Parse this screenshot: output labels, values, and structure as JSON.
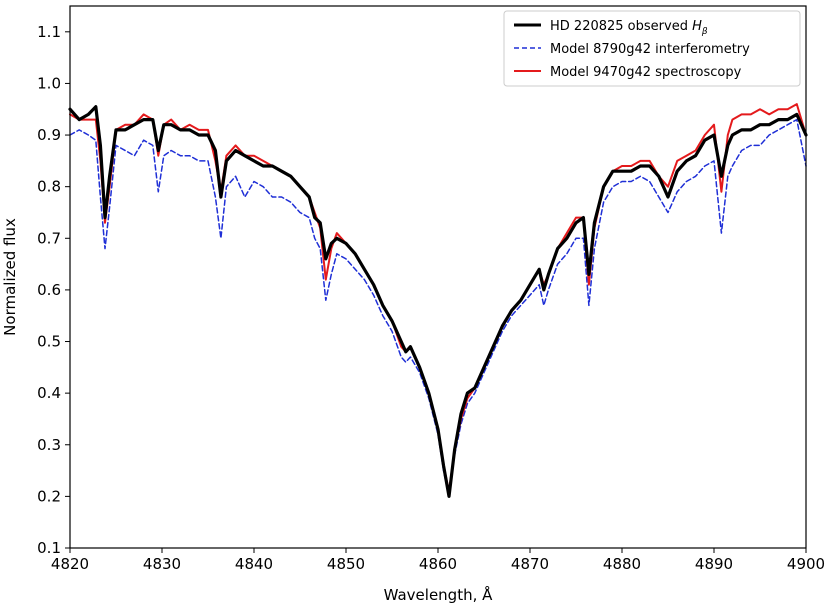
{
  "chart_data": {
    "type": "line",
    "title": "",
    "xlabel": "Wavelength, Å",
    "ylabel": "Normalized flux",
    "xlim": [
      4820,
      4900
    ],
    "ylim": [
      0.1,
      1.15
    ],
    "x_ticks": [
      4820,
      4830,
      4840,
      4850,
      4860,
      4870,
      4880,
      4890,
      4900
    ],
    "x_tick_labels": [
      "4820",
      "4830",
      "4840",
      "4850",
      "4860",
      "4870",
      "4880",
      "4890",
      "4900"
    ],
    "y_ticks": [
      0.1,
      0.2,
      0.3,
      0.4,
      0.5,
      0.6,
      0.7,
      0.8,
      0.9,
      1.0,
      1.1
    ],
    "y_tick_labels": [
      "0.1",
      "0.2",
      "0.3",
      "0.4",
      "0.5",
      "0.6",
      "0.7",
      "0.8",
      "0.9",
      "1.0",
      "1.1"
    ],
    "grid": false,
    "legend_position": "top-right",
    "series": [
      {
        "name": "HD 220825 observed",
        "name_sub": "β",
        "color": "#000000",
        "style": "solid",
        "points": [
          [
            4820.0,
            0.95
          ],
          [
            4821.0,
            0.93
          ],
          [
            4822.0,
            0.94
          ],
          [
            4822.8,
            0.955
          ],
          [
            4823.3,
            0.88
          ],
          [
            4823.8,
            0.74
          ],
          [
            4824.3,
            0.82
          ],
          [
            4825.0,
            0.91
          ],
          [
            4826.0,
            0.91
          ],
          [
            4827.0,
            0.92
          ],
          [
            4828.0,
            0.93
          ],
          [
            4829.0,
            0.93
          ],
          [
            4829.6,
            0.87
          ],
          [
            4830.2,
            0.92
          ],
          [
            4831.0,
            0.92
          ],
          [
            4832.0,
            0.91
          ],
          [
            4833.0,
            0.91
          ],
          [
            4834.0,
            0.9
          ],
          [
            4835.0,
            0.9
          ],
          [
            4835.8,
            0.87
          ],
          [
            4836.4,
            0.78
          ],
          [
            4837.0,
            0.85
          ],
          [
            4838.0,
            0.87
          ],
          [
            4839.0,
            0.86
          ],
          [
            4840.0,
            0.85
          ],
          [
            4841.0,
            0.84
          ],
          [
            4842.0,
            0.84
          ],
          [
            4843.0,
            0.83
          ],
          [
            4844.0,
            0.82
          ],
          [
            4845.0,
            0.8
          ],
          [
            4846.0,
            0.78
          ],
          [
            4846.6,
            0.74
          ],
          [
            4847.2,
            0.73
          ],
          [
            4847.8,
            0.66
          ],
          [
            4848.4,
            0.69
          ],
          [
            4849.0,
            0.7
          ],
          [
            4850.0,
            0.69
          ],
          [
            4851.0,
            0.67
          ],
          [
            4852.0,
            0.64
          ],
          [
            4853.0,
            0.61
          ],
          [
            4854.0,
            0.57
          ],
          [
            4855.0,
            0.54
          ],
          [
            4856.0,
            0.5
          ],
          [
            4856.5,
            0.48
          ],
          [
            4857.0,
            0.49
          ],
          [
            4858.0,
            0.45
          ],
          [
            4859.0,
            0.4
          ],
          [
            4860.0,
            0.33
          ],
          [
            4860.6,
            0.26
          ],
          [
            4861.2,
            0.2
          ],
          [
            4861.8,
            0.29
          ],
          [
            4862.5,
            0.36
          ],
          [
            4863.2,
            0.4
          ],
          [
            4864.0,
            0.41
          ],
          [
            4865.0,
            0.45
          ],
          [
            4866.0,
            0.49
          ],
          [
            4867.0,
            0.53
          ],
          [
            4868.0,
            0.56
          ],
          [
            4869.0,
            0.58
          ],
          [
            4870.0,
            0.61
          ],
          [
            4871.0,
            0.64
          ],
          [
            4871.5,
            0.6
          ],
          [
            4872.0,
            0.63
          ],
          [
            4873.0,
            0.68
          ],
          [
            4874.0,
            0.7
          ],
          [
            4875.0,
            0.73
          ],
          [
            4875.8,
            0.74
          ],
          [
            4876.4,
            0.63
          ],
          [
            4877.0,
            0.73
          ],
          [
            4878.0,
            0.8
          ],
          [
            4879.0,
            0.83
          ],
          [
            4880.0,
            0.83
          ],
          [
            4881.0,
            0.83
          ],
          [
            4882.0,
            0.84
          ],
          [
            4883.0,
            0.84
          ],
          [
            4884.0,
            0.82
          ],
          [
            4885.0,
            0.78
          ],
          [
            4886.0,
            0.83
          ],
          [
            4887.0,
            0.85
          ],
          [
            4888.0,
            0.86
          ],
          [
            4889.0,
            0.89
          ],
          [
            4890.0,
            0.9
          ],
          [
            4890.8,
            0.82
          ],
          [
            4891.5,
            0.88
          ],
          [
            4892.0,
            0.9
          ],
          [
            4893.0,
            0.91
          ],
          [
            4894.0,
            0.91
          ],
          [
            4895.0,
            0.92
          ],
          [
            4896.0,
            0.92
          ],
          [
            4897.0,
            0.93
          ],
          [
            4898.0,
            0.93
          ],
          [
            4899.0,
            0.94
          ],
          [
            4900.0,
            0.9
          ]
        ]
      },
      {
        "name": "Model 8790g42 interferometry",
        "color": "#1f2fd6",
        "style": "dashed",
        "points": [
          [
            4820.0,
            0.9
          ],
          [
            4821.0,
            0.91
          ],
          [
            4822.0,
            0.9
          ],
          [
            4822.8,
            0.89
          ],
          [
            4823.3,
            0.78
          ],
          [
            4823.8,
            0.68
          ],
          [
            4824.3,
            0.76
          ],
          [
            4825.0,
            0.88
          ],
          [
            4826.0,
            0.87
          ],
          [
            4827.0,
            0.86
          ],
          [
            4828.0,
            0.89
          ],
          [
            4829.0,
            0.88
          ],
          [
            4829.6,
            0.79
          ],
          [
            4830.2,
            0.86
          ],
          [
            4831.0,
            0.87
          ],
          [
            4832.0,
            0.86
          ],
          [
            4833.0,
            0.86
          ],
          [
            4834.0,
            0.85
          ],
          [
            4835.0,
            0.85
          ],
          [
            4835.8,
            0.78
          ],
          [
            4836.4,
            0.7
          ],
          [
            4837.0,
            0.8
          ],
          [
            4838.0,
            0.82
          ],
          [
            4839.0,
            0.78
          ],
          [
            4840.0,
            0.81
          ],
          [
            4841.0,
            0.8
          ],
          [
            4842.0,
            0.78
          ],
          [
            4843.0,
            0.78
          ],
          [
            4844.0,
            0.77
          ],
          [
            4845.0,
            0.75
          ],
          [
            4846.0,
            0.74
          ],
          [
            4846.6,
            0.7
          ],
          [
            4847.2,
            0.68
          ],
          [
            4847.8,
            0.58
          ],
          [
            4848.4,
            0.63
          ],
          [
            4849.0,
            0.67
          ],
          [
            4850.0,
            0.66
          ],
          [
            4851.0,
            0.64
          ],
          [
            4852.0,
            0.62
          ],
          [
            4853.0,
            0.59
          ],
          [
            4854.0,
            0.55
          ],
          [
            4855.0,
            0.52
          ],
          [
            4856.0,
            0.47
          ],
          [
            4856.5,
            0.46
          ],
          [
            4857.0,
            0.47
          ],
          [
            4858.0,
            0.44
          ],
          [
            4859.0,
            0.39
          ],
          [
            4860.0,
            0.32
          ],
          [
            4860.6,
            0.25
          ],
          [
            4861.2,
            0.2
          ],
          [
            4861.8,
            0.28
          ],
          [
            4862.5,
            0.34
          ],
          [
            4863.2,
            0.38
          ],
          [
            4864.0,
            0.4
          ],
          [
            4865.0,
            0.44
          ],
          [
            4866.0,
            0.48
          ],
          [
            4867.0,
            0.52
          ],
          [
            4868.0,
            0.55
          ],
          [
            4869.0,
            0.57
          ],
          [
            4870.0,
            0.59
          ],
          [
            4871.0,
            0.61
          ],
          [
            4871.5,
            0.57
          ],
          [
            4872.0,
            0.6
          ],
          [
            4873.0,
            0.65
          ],
          [
            4874.0,
            0.67
          ],
          [
            4875.0,
            0.7
          ],
          [
            4875.8,
            0.7
          ],
          [
            4876.4,
            0.57
          ],
          [
            4877.0,
            0.68
          ],
          [
            4878.0,
            0.77
          ],
          [
            4879.0,
            0.8
          ],
          [
            4880.0,
            0.81
          ],
          [
            4881.0,
            0.81
          ],
          [
            4882.0,
            0.82
          ],
          [
            4883.0,
            0.81
          ],
          [
            4884.0,
            0.78
          ],
          [
            4885.0,
            0.75
          ],
          [
            4886.0,
            0.79
          ],
          [
            4887.0,
            0.81
          ],
          [
            4888.0,
            0.82
          ],
          [
            4889.0,
            0.84
          ],
          [
            4890.0,
            0.85
          ],
          [
            4890.8,
            0.71
          ],
          [
            4891.5,
            0.82
          ],
          [
            4892.0,
            0.84
          ],
          [
            4893.0,
            0.87
          ],
          [
            4894.0,
            0.88
          ],
          [
            4895.0,
            0.88
          ],
          [
            4896.0,
            0.9
          ],
          [
            4897.0,
            0.91
          ],
          [
            4898.0,
            0.92
          ],
          [
            4899.0,
            0.93
          ],
          [
            4900.0,
            0.84
          ]
        ]
      },
      {
        "name": "Model 9470g42 spectroscopy",
        "color": "#e41a1c",
        "style": "solid",
        "points": [
          [
            4820.0,
            0.94
          ],
          [
            4821.0,
            0.93
          ],
          [
            4822.0,
            0.93
          ],
          [
            4822.8,
            0.93
          ],
          [
            4823.3,
            0.85
          ],
          [
            4823.8,
            0.73
          ],
          [
            4824.3,
            0.8
          ],
          [
            4825.0,
            0.91
          ],
          [
            4826.0,
            0.92
          ],
          [
            4827.0,
            0.92
          ],
          [
            4828.0,
            0.94
          ],
          [
            4829.0,
            0.93
          ],
          [
            4829.6,
            0.86
          ],
          [
            4830.2,
            0.92
          ],
          [
            4831.0,
            0.93
          ],
          [
            4832.0,
            0.91
          ],
          [
            4833.0,
            0.92
          ],
          [
            4834.0,
            0.91
          ],
          [
            4835.0,
            0.91
          ],
          [
            4835.8,
            0.85
          ],
          [
            4836.4,
            0.79
          ],
          [
            4837.0,
            0.86
          ],
          [
            4838.0,
            0.88
          ],
          [
            4839.0,
            0.86
          ],
          [
            4840.0,
            0.86
          ],
          [
            4841.0,
            0.85
          ],
          [
            4842.0,
            0.84
          ],
          [
            4843.0,
            0.83
          ],
          [
            4844.0,
            0.82
          ],
          [
            4845.0,
            0.8
          ],
          [
            4846.0,
            0.78
          ],
          [
            4846.6,
            0.75
          ],
          [
            4847.2,
            0.72
          ],
          [
            4847.8,
            0.62
          ],
          [
            4848.4,
            0.68
          ],
          [
            4849.0,
            0.71
          ],
          [
            4850.0,
            0.69
          ],
          [
            4851.0,
            0.67
          ],
          [
            4852.0,
            0.64
          ],
          [
            4853.0,
            0.61
          ],
          [
            4854.0,
            0.57
          ],
          [
            4855.0,
            0.54
          ],
          [
            4856.0,
            0.49
          ],
          [
            4856.5,
            0.48
          ],
          [
            4857.0,
            0.49
          ],
          [
            4858.0,
            0.45
          ],
          [
            4859.0,
            0.4
          ],
          [
            4860.0,
            0.33
          ],
          [
            4860.6,
            0.26
          ],
          [
            4861.2,
            0.21
          ],
          [
            4861.8,
            0.29
          ],
          [
            4862.5,
            0.35
          ],
          [
            4863.2,
            0.39
          ],
          [
            4864.0,
            0.41
          ],
          [
            4865.0,
            0.45
          ],
          [
            4866.0,
            0.49
          ],
          [
            4867.0,
            0.53
          ],
          [
            4868.0,
            0.56
          ],
          [
            4869.0,
            0.58
          ],
          [
            4870.0,
            0.61
          ],
          [
            4871.0,
            0.64
          ],
          [
            4871.5,
            0.61
          ],
          [
            4872.0,
            0.63
          ],
          [
            4873.0,
            0.68
          ],
          [
            4874.0,
            0.71
          ],
          [
            4875.0,
            0.74
          ],
          [
            4875.8,
            0.74
          ],
          [
            4876.4,
            0.61
          ],
          [
            4877.0,
            0.72
          ],
          [
            4878.0,
            0.8
          ],
          [
            4879.0,
            0.83
          ],
          [
            4880.0,
            0.84
          ],
          [
            4881.0,
            0.84
          ],
          [
            4882.0,
            0.85
          ],
          [
            4883.0,
            0.85
          ],
          [
            4884.0,
            0.82
          ],
          [
            4885.0,
            0.8
          ],
          [
            4886.0,
            0.85
          ],
          [
            4887.0,
            0.86
          ],
          [
            4888.0,
            0.87
          ],
          [
            4889.0,
            0.9
          ],
          [
            4890.0,
            0.92
          ],
          [
            4890.8,
            0.79
          ],
          [
            4891.5,
            0.9
          ],
          [
            4892.0,
            0.93
          ],
          [
            4893.0,
            0.94
          ],
          [
            4894.0,
            0.94
          ],
          [
            4895.0,
            0.95
          ],
          [
            4896.0,
            0.94
          ],
          [
            4897.0,
            0.95
          ],
          [
            4898.0,
            0.95
          ],
          [
            4899.0,
            0.96
          ],
          [
            4900.0,
            0.9
          ]
        ]
      }
    ]
  }
}
